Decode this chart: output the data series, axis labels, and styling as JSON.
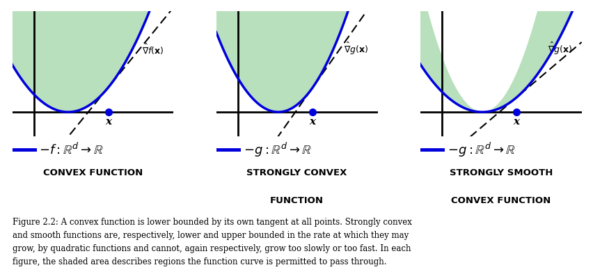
{
  "background": "#ffffff",
  "green_fill": "#b8e0bc",
  "blue_color": "#0000dd",
  "caption": "Figure 2.2: A convex function is lower bounded by its own tangent at all points. Strongly convex\nand smooth functions are, respectively, lower and upper bounded in the rate at which they may\ngrow, by quadratic functions and cannot, again respectively, grow too slowly or too fast. In each\nfigure, the shaded area describes regions the function curve is permitted to pass through.",
  "panels": [
    {
      "label1": "$-f : \\mathbb{R}^d \\rightarrow \\mathbb{R}$",
      "label2": "CONVEX FUNCTION",
      "grad_label": "$\\hat{\\nabla} f(\\mathbf{x})$",
      "type": "convex"
    },
    {
      "label1": "$-g : \\mathbb{R}^d \\rightarrow \\mathbb{R}$",
      "label2": "STRONGLY CONVEX\nFUNCTION",
      "grad_label": "$\\hat{\\nabla} g(\\mathbf{x})$",
      "type": "strongly_convex"
    },
    {
      "label1": "$-g : \\mathbb{R}^d \\rightarrow \\mathbb{R}$",
      "label2": "STRONGLY SMOOTH\nCONVEX FUNCTION",
      "grad_label": "$\\hat{\\nabla} g(\\mathbf{x})$",
      "type": "strongly_smooth"
    }
  ]
}
